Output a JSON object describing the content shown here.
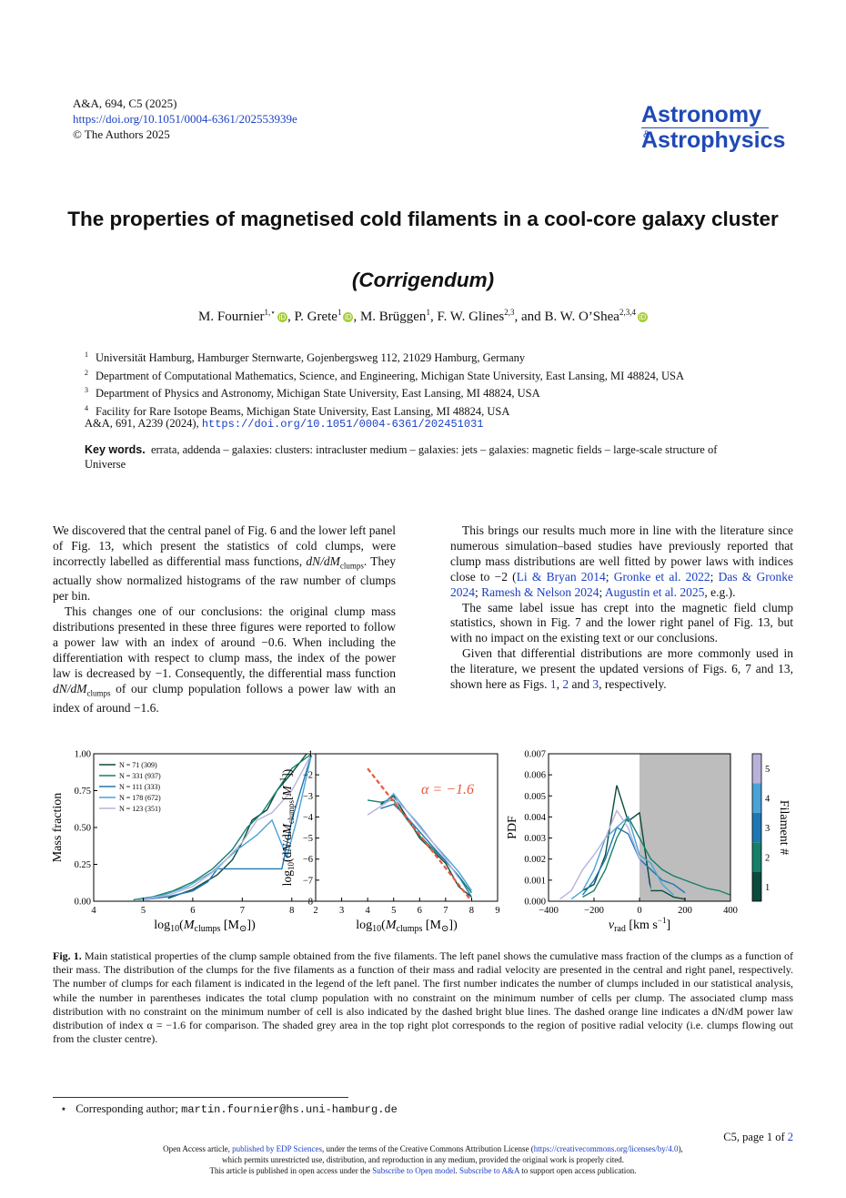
{
  "header": {
    "journal_ref": "A&A, 694, C5 (2025)",
    "doi_link": "https://doi.org/10.1051/0004-6361/202553939e",
    "copyright": "© The Authors 2025"
  },
  "logo": {
    "line1": "Astronomy",
    "amp": "&",
    "line2": "Astrophysics",
    "color": "#1f49b6"
  },
  "title": "The properties of magnetised cold filaments in a cool-core galaxy cluster",
  "subtitle": "(Corrigendum)",
  "authors": [
    {
      "name": "M. Fournier",
      "sup": "1,⋆",
      "orcid": true,
      "sep": ", "
    },
    {
      "name": "P. Grete",
      "sup": "1",
      "orcid": true,
      "sep": ", "
    },
    {
      "name": "M. Brüggen",
      "sup": "1",
      "orcid": false,
      "sep": ", "
    },
    {
      "name": "F. W. Glines",
      "sup": "2,3",
      "orcid": false,
      "sep": ", and "
    },
    {
      "name": "B. W. O’Shea",
      "sup": "2,3,4",
      "orcid": true,
      "sep": ""
    }
  ],
  "affiliations": [
    {
      "num": "1",
      "text": "Universität Hamburg, Hamburger Sternwarte, Gojenbergsweg 112, 21029 Hamburg, Germany"
    },
    {
      "num": "2",
      "text": "Department of Computational Mathematics, Science, and Engineering, Michigan State University, East Lansing, MI 48824, USA"
    },
    {
      "num": "3",
      "text": "Department of Physics and Astronomy, Michigan State University, East Lansing, MI 48824, USA"
    },
    {
      "num": "4",
      "text": "Facility for Rare Isotope Beams, Michigan State University, East Lansing, MI 48824, USA"
    }
  ],
  "original_ref": {
    "text": "A&A, 691, A239 (2024), ",
    "doi": "https://doi.org/10.1051/0004-6361/202451031"
  },
  "keywords": {
    "label": "Key words.",
    "text": "errata, addenda – galaxies: clusters: intracluster medium – galaxies: jets – galaxies: magnetic fields – large-scale structure of Universe"
  },
  "left_column": {
    "p1a": "We discovered that the central panel of Fig. 6 and the lower left panel of Fig. 13, which present the statistics of cold clumps, were incorrectly labelled as differential mass functions, ",
    "p1_math": "dN/dM",
    "p1_sub": "clumps",
    "p1b": ". They actually show normalized histograms of the raw number of clumps per bin.",
    "p2a": "This changes one of our conclusions: the original clump mass distributions presented in these three figures were reported to follow a power law with an index of around −0.6. When including the differentiation with respect to clump mass, the index of the power law is decreased by −1. Consequently, the differential mass function ",
    "p2_math": "dN/dM",
    "p2_sub": "clumps",
    "p2b": " of our clump population follows a power law with an index of around −1.6."
  },
  "right_column": {
    "p1a": "This brings our results much more in line with the literature since numerous simulation–based studies have previously reported that clump mass distributions are well fitted by power laws with indices close to −2 (",
    "cites": [
      "Li & Bryan 2014",
      "Gronke et al. 2022",
      "Das & Gronke 2024",
      "Ramesh & Nelson 2024",
      "Augustin et al. 2025"
    ],
    "p1b": ", e.g.).",
    "p2": "The same label issue has crept into the magnetic field clump statistics, shown in Fig. 7 and the lower right panel of Fig. 13, but with no impact on the existing text or our conclusions.",
    "p3a": "Given that differential distributions are more commonly used in the literature, we present the updated versions of Figs. 6, 7 and 13, shown here as Figs. ",
    "fig1": "1",
    "p3b": ", ",
    "fig2": "2",
    "p3c": " and ",
    "fig3": "3",
    "p3d": ", respectively."
  },
  "chart_data": [
    {
      "type": "line",
      "panel": "left",
      "xlabel": "log10(Mclumps [M⊙])",
      "ylabel": "Mass fraction",
      "xlim": [
        4,
        8.5
      ],
      "ylim": [
        0,
        1
      ],
      "xticks": [
        "4",
        "5",
        "6",
        "7",
        "8"
      ],
      "yticks": [
        "0.00",
        "0.25",
        "0.50",
        "0.75",
        "1.00"
      ],
      "legend_placement": "top-left",
      "series": [
        {
          "name": "N = 71 (309)",
          "color": "#0b4a3c",
          "x": [
            5.5,
            6.0,
            6.5,
            6.8,
            7.0,
            7.2,
            7.5,
            7.7,
            8.0,
            8.3
          ],
          "y": [
            0.02,
            0.08,
            0.18,
            0.28,
            0.4,
            0.55,
            0.62,
            0.75,
            0.87,
            1.0
          ]
        },
        {
          "name": "N = 331 (937)",
          "color": "#16806a",
          "x": [
            4.8,
            5.2,
            5.6,
            6.0,
            6.4,
            6.8,
            7.1,
            7.4,
            7.7,
            8.0,
            8.4
          ],
          "y": [
            0.01,
            0.03,
            0.07,
            0.13,
            0.22,
            0.35,
            0.5,
            0.6,
            0.75,
            0.9,
            1.0
          ]
        },
        {
          "name": "N = 111 (333)",
          "color": "#1f78b4",
          "x": [
            5.0,
            5.5,
            6.0,
            6.3,
            6.5,
            7.0,
            7.8,
            8.0,
            8.4
          ],
          "y": [
            0.01,
            0.03,
            0.07,
            0.13,
            0.22,
            0.22,
            0.22,
            0.55,
            1.0
          ]
        },
        {
          "name": "N = 178 (672)",
          "color": "#4aa3d6",
          "x": [
            4.9,
            5.4,
            5.9,
            6.4,
            6.9,
            7.3,
            7.6,
            7.9,
            8.1,
            8.4
          ],
          "y": [
            0.01,
            0.04,
            0.1,
            0.2,
            0.35,
            0.45,
            0.55,
            0.3,
            0.55,
            1.0
          ]
        },
        {
          "name": "N = 123 (351)",
          "color": "#b8b2da",
          "x": [
            5.0,
            5.5,
            6.0,
            6.5,
            7.0,
            7.3,
            7.6,
            8.0,
            8.4
          ],
          "y": [
            0.01,
            0.04,
            0.1,
            0.22,
            0.4,
            0.55,
            0.6,
            0.75,
            1.0
          ]
        }
      ]
    },
    {
      "type": "line",
      "panel": "center",
      "xlabel": "log10(Mclumps [M⊙])",
      "ylabel": "log10(dN/dMclumps[M⊙−1])",
      "xlim": [
        2,
        9
      ],
      "ylim": [
        -8,
        -1
      ],
      "xticks": [
        "2",
        "3",
        "4",
        "5",
        "6",
        "7",
        "8",
        "9"
      ],
      "yticks": [
        "−8",
        "−7",
        "−6",
        "−5",
        "−4",
        "−3",
        "−2",
        "−1"
      ],
      "annotation": "α = −1.6",
      "fit": {
        "name": "α = −1.6",
        "color": "#e8573a",
        "x": [
          4.0,
          8.0
        ],
        "y": [
          -1.7,
          -8.0
        ]
      },
      "series": [
        {
          "name": "N = 71 (309)",
          "color": "#0b4a3c",
          "x": [
            4.5,
            5.0,
            5.5,
            6.0,
            6.5,
            7.0,
            7.5,
            8.0
          ],
          "y": [
            -3.4,
            -3.0,
            -4.0,
            -5.0,
            -5.6,
            -6.2,
            -7.3,
            -7.8
          ]
        },
        {
          "name": "N = 331 (937)",
          "color": "#16806a",
          "x": [
            4.0,
            4.5,
            5.0,
            5.5,
            6.0,
            6.5,
            7.0,
            7.5,
            8.0
          ],
          "y": [
            -3.2,
            -3.3,
            -3.2,
            -4.1,
            -4.9,
            -5.5,
            -6.1,
            -6.8,
            -7.6
          ]
        },
        {
          "name": "N = 111 (333)",
          "color": "#1f78b4",
          "x": [
            4.5,
            5.0,
            5.5,
            6.0,
            6.5,
            7.0,
            7.5,
            8.0
          ],
          "y": [
            -3.6,
            -3.4,
            -4.0,
            -4.7,
            -5.4,
            -6.1,
            -6.8,
            -7.8
          ]
        },
        {
          "name": "N = 178 (672)",
          "color": "#4aa3d6",
          "x": [
            4.5,
            5.0,
            5.5,
            6.0,
            6.5,
            7.0,
            7.5,
            8.0
          ],
          "y": [
            -3.5,
            -2.9,
            -3.7,
            -4.4,
            -5.2,
            -5.9,
            -6.6,
            -7.5
          ]
        },
        {
          "name": "N = 123 (351)",
          "color": "#b8b2da",
          "x": [
            4.0,
            4.5,
            5.0,
            5.5,
            6.0,
            6.5,
            7.0,
            7.5
          ],
          "y": [
            -3.9,
            -3.5,
            -3.1,
            -3.7,
            -4.5,
            -5.2,
            -6.0,
            -6.9
          ]
        }
      ]
    },
    {
      "type": "line",
      "panel": "right",
      "xlabel": "vrad [km s−1]",
      "ylabel": "PDF",
      "xlim": [
        -400,
        400
      ],
      "ylim": [
        0,
        0.007
      ],
      "xticks": [
        "−400",
        "−200",
        "0",
        "200",
        "400"
      ],
      "yticks": [
        "0.000",
        "0.001",
        "0.002",
        "0.003",
        "0.004",
        "0.005",
        "0.006",
        "0.007"
      ],
      "shaded_region": {
        "x": [
          0,
          400
        ],
        "color": "#bdbdbd"
      },
      "colorbar": {
        "label": "Filament #",
        "ticks": [
          "1",
          "2",
          "3",
          "4",
          "5"
        ],
        "colors": [
          "#0b4a3c",
          "#16806a",
          "#1f78b4",
          "#4aa3d6",
          "#b8b2da"
        ]
      },
      "series": [
        {
          "name": "1",
          "color": "#0b4a3c",
          "x": [
            -250,
            -200,
            -150,
            -100,
            -50,
            0,
            50,
            100,
            150,
            200
          ],
          "y": [
            0.0005,
            0.0008,
            0.0022,
            0.0055,
            0.0038,
            0.0042,
            0.0005,
            0.0005,
            0.0002,
            0.0001
          ]
        },
        {
          "name": "2",
          "color": "#16806a",
          "x": [
            -250,
            -200,
            -150,
            -100,
            -50,
            0,
            50,
            100,
            150,
            200,
            250,
            300,
            350,
            400
          ],
          "y": [
            0.0002,
            0.0005,
            0.0015,
            0.003,
            0.004,
            0.003,
            0.002,
            0.0015,
            0.0012,
            0.001,
            0.0008,
            0.0006,
            0.0005,
            0.0003
          ]
        },
        {
          "name": "3",
          "color": "#1f78b4",
          "x": [
            -250,
            -200,
            -150,
            -100,
            -50,
            0,
            50,
            100,
            150,
            200
          ],
          "y": [
            0.0003,
            0.001,
            0.002,
            0.0035,
            0.0032,
            0.002,
            0.0015,
            0.001,
            0.0008,
            0.0004
          ]
        },
        {
          "name": "4",
          "color": "#4aa3d6",
          "x": [
            -300,
            -250,
            -200,
            -150,
            -100,
            -50,
            0,
            50,
            100,
            150
          ],
          "y": [
            0.0001,
            0.0005,
            0.0015,
            0.003,
            0.0035,
            0.004,
            0.0022,
            0.0018,
            0.0008,
            0.0003
          ]
        },
        {
          "name": "5",
          "color": "#b8b2da",
          "x": [
            -350,
            -300,
            -250,
            -200,
            -150,
            -100,
            -50,
            0,
            50
          ],
          "y": [
            0.0001,
            0.0005,
            0.0015,
            0.0022,
            0.003,
            0.0043,
            0.0035,
            0.002,
            0.0005
          ]
        }
      ]
    }
  ],
  "caption": {
    "label": "Fig. 1.",
    "text": "Main statistical properties of the clump sample obtained from the five filaments. The left panel shows the cumulative mass fraction of the clumps as a function of their mass. The distribution of the clumps for the five filaments as a function of their mass and radial velocity are presented in the central and right panel, respectively. The number of clumps for each filament is indicated in the legend of the left panel. The first number indicates the number of clumps included in our statistical analysis, while the number in parentheses indicates the total clump population with no constraint on the minimum number of cells per clump. The associated clump mass distribution with no constraint on the minimum number of cell is also indicated by the dashed bright blue lines. The dashed orange line indicates a dN/dM power law distribution of index α = −1.6 for comparison. The shaded grey area in the top right plot corresponds to the region of positive radial velocity (i.e. clumps flowing out from the cluster centre)."
  },
  "footnote": {
    "mark": "⋆",
    "text": "Corresponding author; ",
    "email": "martin.fournier@hs.uni-hamburg.de"
  },
  "page_label": {
    "text": "C5, page 1 of ",
    "total": "2"
  },
  "open_access": {
    "l1a": "Open Access article, ",
    "l1_link1": "published by EDP Sciences",
    "l1b": ", under the terms of the Creative Commons Attribution License (",
    "l1_link2": "https://creativecommons.org/licenses/by/4.0",
    "l1c": "),",
    "l2": "which permits unrestricted use, distribution, and reproduction in any medium, provided the original work is properly cited.",
    "l3a": "This article is published in open access under the ",
    "l3_link1": "Subscribe to Open model",
    "l3b": ". ",
    "l3_link2": "Subscribe to A&A",
    "l3c": " to support open access publication."
  }
}
